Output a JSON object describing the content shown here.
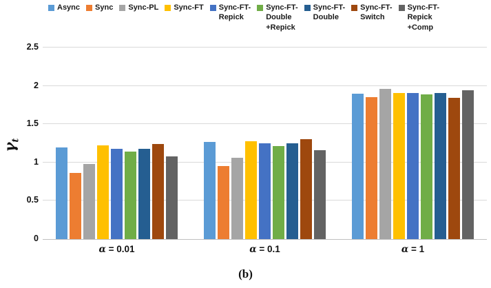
{
  "caption": "(b)",
  "y_axis": {
    "symbol": "γ",
    "subscript": "t"
  },
  "chart_data": {
    "type": "bar",
    "title": "",
    "xlabel": "",
    "ylabel": "γ_t",
    "ylim": [
      0,
      2.5
    ],
    "yticks": [
      0,
      0.5,
      1,
      1.5,
      2,
      2.5
    ],
    "ytick_labels": [
      "0",
      "0.5",
      "1",
      "1.5",
      "2",
      "2.5"
    ],
    "grid": "horizontal",
    "legend_position": "top",
    "categories": [
      "α = 0.01",
      "α = 0.1",
      "α = 1"
    ],
    "series": [
      {
        "name": "Async",
        "legend_lines": "Async",
        "color": "#5B9BD5",
        "values": [
          1.2,
          1.27,
          1.9
        ]
      },
      {
        "name": "Sync",
        "legend_lines": "Sync",
        "color": "#ED7D31",
        "values": [
          0.86,
          0.95,
          1.85
        ]
      },
      {
        "name": "Sync-PL",
        "legend_lines": "Sync-PL",
        "color": "#A5A5A5",
        "values": [
          0.98,
          1.06,
          1.96
        ]
      },
      {
        "name": "Sync-FT",
        "legend_lines": "Sync-FT",
        "color": "#FFC000",
        "values": [
          1.22,
          1.28,
          1.91
        ]
      },
      {
        "name": "Sync-FT-Repick",
        "legend_lines": "Sync-FT-\nRepick",
        "color": "#4472C4",
        "values": [
          1.18,
          1.25,
          1.91
        ]
      },
      {
        "name": "Sync-FT-Double+Repick",
        "legend_lines": "Sync-FT-\nDouble\n+Repick",
        "color": "#70AD47",
        "values": [
          1.14,
          1.21,
          1.89
        ]
      },
      {
        "name": "Sync-FT-Double",
        "legend_lines": "Sync-FT-\nDouble",
        "color": "#255E91",
        "values": [
          1.18,
          1.25,
          1.91
        ]
      },
      {
        "name": "Sync-FT-Switch",
        "legend_lines": "Sync-FT-\nSwitch",
        "color": "#9E480E",
        "values": [
          1.24,
          1.3,
          1.84
        ]
      },
      {
        "name": "Sync-FT-Repick+Comp",
        "legend_lines": "Sync-FT-\nRepick\n+Comp",
        "color": "#636363",
        "values": [
          1.08,
          1.16,
          1.94
        ]
      }
    ]
  }
}
